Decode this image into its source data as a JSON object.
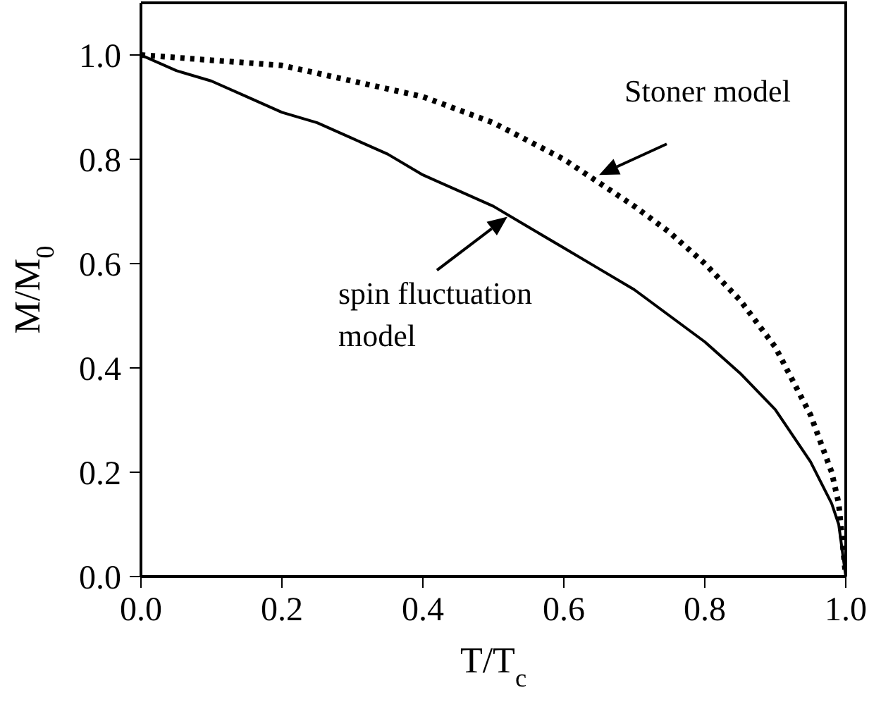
{
  "chart_data": {
    "type": "line",
    "xlabel": "T/T$_{c}$",
    "ylabel": "M/M$_{0}$",
    "xlim": [
      0,
      1
    ],
    "ylim": [
      0,
      1.1
    ],
    "xticks": [
      {
        "value": 0,
        "label": "0.0"
      },
      {
        "value": 0.2,
        "label": "0.2"
      },
      {
        "value": 0.4,
        "label": "0.4"
      },
      {
        "value": 0.6,
        "label": "0.6"
      },
      {
        "value": 0.8,
        "label": "0.8"
      },
      {
        "value": 1,
        "label": "1.0"
      }
    ],
    "yticks": [
      {
        "value": 0,
        "label": "0.0"
      },
      {
        "value": 0.2,
        "label": "0.2"
      },
      {
        "value": 0.4,
        "label": "0.4"
      },
      {
        "value": 0.6,
        "label": "0.6"
      },
      {
        "value": 0.8,
        "label": "0.8"
      },
      {
        "value": 1,
        "label": "1.0"
      }
    ],
    "grid": false,
    "marker": "none",
    "series": [
      {
        "color": "#000000",
        "line_style": "solid",
        "x": [
          0,
          0.05,
          0.1,
          0.15,
          0.2,
          0.25,
          0.3,
          0.35,
          0.4,
          0.45,
          0.5,
          0.55,
          0.6,
          0.65,
          0.7,
          0.75,
          0.8,
          0.85,
          0.9,
          0.95,
          0.98,
          0.99,
          1
        ],
        "values": [
          1,
          0.97,
          0.95,
          0.92,
          0.89,
          0.87,
          0.84,
          0.81,
          0.77,
          0.74,
          0.71,
          0.67,
          0.63,
          0.59,
          0.55,
          0.5,
          0.45,
          0.39,
          0.32,
          0.22,
          0.14,
          0.1,
          0
        ]
      },
      {
        "color": "#000000",
        "line_style": "dotted",
        "x": [
          0,
          0.1,
          0.2,
          0.3,
          0.4,
          0.5,
          0.6,
          0.7,
          0.75,
          0.8,
          0.85,
          0.9,
          0.95,
          0.98,
          0.99,
          1
        ],
        "values": [
          1,
          0.99,
          0.98,
          0.95,
          0.92,
          0.87,
          0.8,
          0.71,
          0.66,
          0.6,
          0.53,
          0.44,
          0.31,
          0.2,
          0.14,
          0
        ]
      }
    ],
    "annotations": [
      {
        "text": "Stoner model",
        "x": 0.65,
        "y": 0.77
      },
      {
        "text": "spin fluctuation model",
        "x": 0.52,
        "y": 0.69
      }
    ]
  }
}
